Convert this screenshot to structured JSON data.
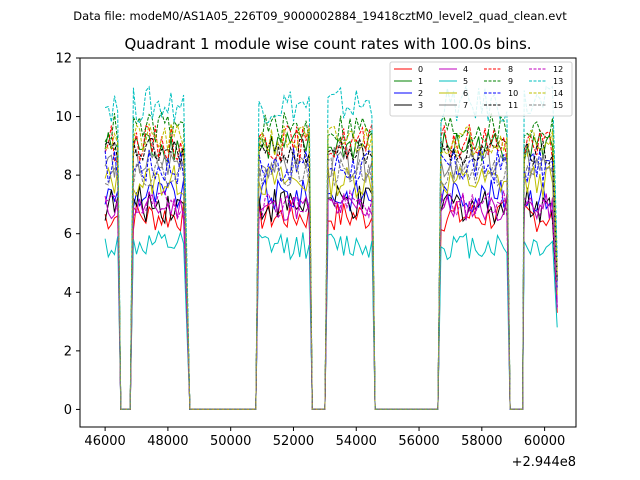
{
  "chart_data": {
    "type": "line",
    "suptitle": "Data file: modeM0/AS1A05_226T09_9000002884_19418cztM0_level2_quad_clean.evt",
    "title": "Quadrant 1 module wise count rates with 100.0s bins.",
    "xlabel": "",
    "ylabel": "",
    "x_offset_label": "+2.944e8",
    "xlim": [
      45200,
      61000
    ],
    "ylim": [
      -0.6,
      12.0
    ],
    "x_ticks": [
      46000,
      48000,
      50000,
      52000,
      54000,
      56000,
      58000,
      60000
    ],
    "y_ticks": [
      0,
      2,
      4,
      6,
      8,
      10,
      12
    ],
    "x_tick_labels": [
      "46000",
      "48000",
      "50000",
      "52000",
      "54000",
      "56000",
      "58000",
      "60000"
    ],
    "y_tick_labels": [
      "0",
      "2",
      "4",
      "6",
      "8",
      "10",
      "12"
    ],
    "legend_position": "top-right",
    "segments": [
      [
        46000,
        46400
      ],
      [
        46900,
        48500
      ],
      [
        50900,
        52500
      ],
      [
        53100,
        54500
      ],
      [
        56700,
        58800
      ],
      [
        59350,
        60300
      ]
    ],
    "gaps_at_zero": [
      [
        46500,
        46800
      ],
      [
        48700,
        50800
      ],
      [
        52600,
        53000
      ],
      [
        54600,
        56600
      ],
      [
        58900,
        59300
      ]
    ],
    "series": [
      {
        "name": "0",
        "color": "#ff0000",
        "dash": "solid",
        "mean": 6.6,
        "amp": 0.35
      },
      {
        "name": "1",
        "color": "#008000",
        "dash": "solid",
        "mean": 9.0,
        "amp": 0.35
      },
      {
        "name": "2",
        "color": "#0000ff",
        "dash": "solid",
        "mean": 7.3,
        "amp": 0.35
      },
      {
        "name": "3",
        "color": "#000000",
        "dash": "solid",
        "mean": 7.0,
        "amp": 0.4
      },
      {
        "name": "4",
        "color": "#bf00bf",
        "dash": "solid",
        "mean": 6.9,
        "amp": 0.3
      },
      {
        "name": "5",
        "color": "#00bfbf",
        "dash": "solid",
        "mean": 5.6,
        "amp": 0.3
      },
      {
        "name": "6",
        "color": "#bfbf00",
        "dash": "solid",
        "mean": 7.8,
        "amp": 0.35
      },
      {
        "name": "7",
        "color": "#808080",
        "dash": "solid",
        "mean": 8.4,
        "amp": 0.35
      },
      {
        "name": "8",
        "color": "#ff0000",
        "dash": "dashed",
        "mean": 9.1,
        "amp": 0.4
      },
      {
        "name": "9",
        "color": "#008000",
        "dash": "dashed",
        "mean": 9.6,
        "amp": 0.35
      },
      {
        "name": "10",
        "color": "#0000ff",
        "dash": "dashed",
        "mean": 8.3,
        "amp": 0.4
      },
      {
        "name": "11",
        "color": "#000000",
        "dash": "dashed",
        "mean": 8.8,
        "amp": 0.3
      },
      {
        "name": "12",
        "color": "#bf00bf",
        "dash": "dashed",
        "mean": 7.0,
        "amp": 0.3
      },
      {
        "name": "13",
        "color": "#00bfbf",
        "dash": "dashed",
        "mean": 10.4,
        "amp": 0.4
      },
      {
        "name": "14",
        "color": "#bfbf00",
        "dash": "dashed",
        "mean": 9.2,
        "amp": 0.35
      },
      {
        "name": "15",
        "color": "#808080",
        "dash": "dashed",
        "mean": 8.1,
        "amp": 0.3
      }
    ]
  }
}
